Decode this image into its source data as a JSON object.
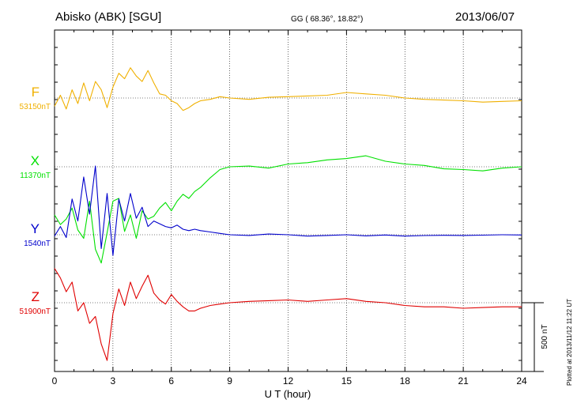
{
  "header": {
    "station": "Abisko (ABK)  [SGU]",
    "coords": "GG ( 68.36°,  18.82°)",
    "date": "2013/06/07"
  },
  "plot_stamp": "Plotted at 2013/11/12 11:22 UT",
  "scale_label": "500 nT",
  "colors": {
    "F": "#f0b000",
    "X": "#00e000",
    "Y": "#0000cc",
    "Z": "#e00000"
  },
  "chart_data": {
    "type": "line",
    "xlabel": "U T (hour)",
    "xlim": [
      0,
      24
    ],
    "x_ticks": [
      0,
      3,
      6,
      9,
      12,
      15,
      18,
      21,
      24
    ],
    "scale_nT": 500,
    "legend_placement": "left",
    "grid": true,
    "series": [
      {
        "name": "F",
        "baseline": "53150nT",
        "color": "#f0b000",
        "x": [
          0,
          0.3,
          0.6,
          0.9,
          1.2,
          1.5,
          1.8,
          2.1,
          2.4,
          2.7,
          3.0,
          3.3,
          3.6,
          3.9,
          4.2,
          4.5,
          4.8,
          5.1,
          5.4,
          5.7,
          6.0,
          6.3,
          6.6,
          6.9,
          7.2,
          7.5,
          8,
          8.5,
          9,
          10,
          11,
          12,
          13,
          14,
          15,
          16,
          17,
          18,
          19,
          20,
          21,
          22,
          23,
          24
        ],
        "y": [
          -60,
          20,
          -80,
          60,
          -40,
          110,
          -20,
          120,
          60,
          -70,
          80,
          180,
          140,
          220,
          160,
          120,
          200,
          110,
          30,
          20,
          -20,
          -40,
          -90,
          -70,
          -40,
          -20,
          -10,
          10,
          0,
          -10,
          5,
          10,
          15,
          20,
          40,
          30,
          20,
          0,
          -10,
          -15,
          -20,
          -30,
          -25,
          -20
        ]
      },
      {
        "name": "X",
        "baseline": "11370nT",
        "color": "#00e000",
        "x": [
          0,
          0.3,
          0.6,
          0.9,
          1.2,
          1.5,
          1.8,
          2.1,
          2.4,
          2.7,
          3.0,
          3.3,
          3.6,
          3.9,
          4.2,
          4.5,
          4.8,
          5.1,
          5.4,
          5.7,
          6.0,
          6.3,
          6.6,
          6.9,
          7.2,
          7.5,
          8,
          8.5,
          9,
          10,
          11,
          12,
          13,
          14,
          15,
          16,
          17,
          18,
          19,
          20,
          21,
          22,
          23,
          24
        ],
        "y": [
          -350,
          -420,
          -380,
          -300,
          -460,
          -520,
          -250,
          -600,
          -700,
          -480,
          -250,
          -230,
          -470,
          -350,
          -520,
          -320,
          -380,
          -360,
          -300,
          -260,
          -320,
          -250,
          -200,
          -230,
          -180,
          -150,
          -80,
          -20,
          0,
          5,
          -10,
          20,
          30,
          50,
          60,
          80,
          40,
          20,
          10,
          -15,
          -20,
          -30,
          -10,
          0
        ]
      },
      {
        "name": "Y",
        "baseline": "1540nT",
        "color": "#0000cc",
        "x": [
          0,
          0.3,
          0.6,
          0.9,
          1.2,
          1.5,
          1.8,
          2.1,
          2.4,
          2.7,
          3.0,
          3.3,
          3.6,
          3.9,
          4.2,
          4.5,
          4.8,
          5.1,
          5.4,
          5.7,
          6.0,
          6.3,
          6.6,
          6.9,
          7.2,
          7.5,
          8,
          8.5,
          9,
          10,
          11,
          12,
          13,
          14,
          15,
          16,
          17,
          18,
          19,
          20,
          21,
          22,
          23,
          24
        ],
        "y": [
          -10,
          60,
          -20,
          260,
          100,
          420,
          150,
          500,
          -100,
          300,
          -150,
          260,
          100,
          300,
          120,
          200,
          60,
          100,
          80,
          60,
          50,
          70,
          40,
          30,
          40,
          30,
          20,
          10,
          0,
          -5,
          5,
          0,
          -10,
          -5,
          0,
          -8,
          -2,
          -10,
          -6,
          -4,
          -5,
          -3,
          0,
          -2
        ]
      },
      {
        "name": "Z",
        "baseline": "51900nT",
        "color": "#e00000",
        "x": [
          0,
          0.3,
          0.6,
          0.9,
          1.2,
          1.5,
          1.8,
          2.1,
          2.4,
          2.7,
          3.0,
          3.3,
          3.6,
          3.9,
          4.2,
          4.5,
          4.8,
          5.1,
          5.4,
          5.7,
          6.0,
          6.3,
          6.6,
          6.9,
          7.2,
          7.5,
          8,
          8.5,
          9,
          10,
          11,
          12,
          13,
          14,
          15,
          16,
          17,
          18,
          19,
          20,
          21,
          22,
          23,
          24
        ],
        "y": [
          250,
          180,
          80,
          150,
          -60,
          0,
          -150,
          -100,
          -300,
          -420,
          -80,
          100,
          -20,
          150,
          30,
          120,
          200,
          70,
          20,
          -10,
          60,
          10,
          -30,
          -60,
          -60,
          -40,
          -20,
          -10,
          0,
          10,
          15,
          20,
          10,
          20,
          30,
          10,
          0,
          -20,
          -30,
          -30,
          -40,
          -35,
          -30,
          -30
        ]
      }
    ]
  }
}
